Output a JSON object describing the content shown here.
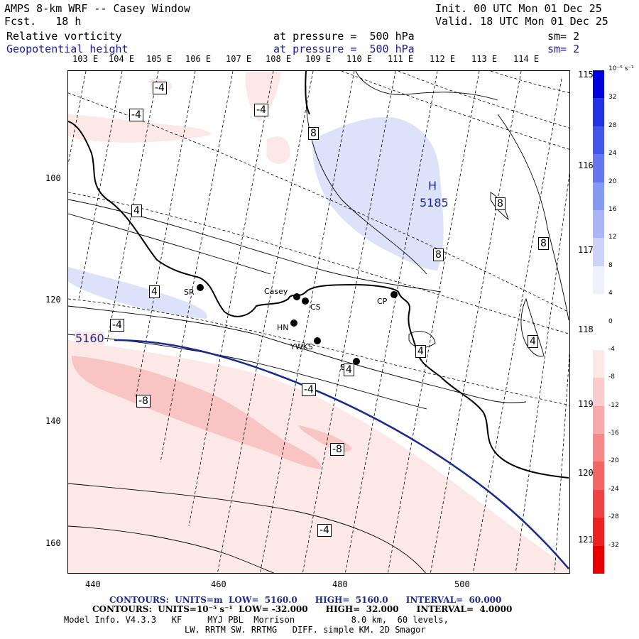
{
  "header": {
    "title": "AMPS 8-km WRF -- Casey Window",
    "fcst": "Fcst.   18 h",
    "init": "Init. 00 UTC Mon 01 Dec 25",
    "valid": "Valid. 18 UTC Mon 01 Dec 25",
    "field1_name": "Relative vorticity",
    "field1_level": "at pressure =  500 hPa",
    "field1_sm": "sm= 2",
    "field2_name": "Geopotential height",
    "field2_level": "at pressure =  500 hPa",
    "field2_sm": "sm= 2"
  },
  "top_longitudes": [
    "103 E",
    "104 E",
    "105 E",
    "106 E",
    "107 E",
    "108 E",
    "109 E",
    "110 E",
    "111 E",
    "112 E",
    "113 E",
    "114 E"
  ],
  "right_latitudes": [
    "115 E",
    "116 E",
    "117 E",
    "118 E",
    "119 E",
    "120 E",
    "121 E"
  ],
  "y_axis": [
    "100",
    "120",
    "140",
    "160"
  ],
  "x_axis": [
    "440",
    "460",
    "480",
    "500"
  ],
  "stations": [
    {
      "label": "SR"
    },
    {
      "label": "Casey"
    },
    {
      "label": "CS"
    },
    {
      "label": "CP"
    },
    {
      "label": "HN"
    },
    {
      "label": "YWKS"
    },
    {
      "label": "BS"
    }
  ],
  "contour_labels": {
    "vort": [
      "-4",
      "-4",
      "-4",
      "8",
      "8",
      "8",
      "4",
      "4",
      "8",
      "-4",
      "4",
      "4",
      "-4",
      "-8",
      "-8",
      "-4",
      "4"
    ],
    "height_high": "H",
    "height_high_value": "5185",
    "height_line": "5160"
  },
  "colorbar": {
    "unit": "10⁻⁵ s⁻¹",
    "ticks": [
      "32",
      "28",
      "24",
      "20",
      "16",
      "12",
      "8",
      "4",
      "0",
      "-4",
      "-8",
      "-12",
      "-16",
      "-20",
      "-24",
      "-28",
      "-32"
    ],
    "colors": [
      "#0000dd",
      "#2233e6",
      "#4455ea",
      "#6677ee",
      "#8899f2",
      "#aab5f5",
      "#ccd2f8",
      "#eef0fc",
      "#ffffff",
      "#ffffff",
      "#fde8e8",
      "#fbcccc",
      "#f8aaaa",
      "#f58888",
      "#f26666",
      "#ef4444",
      "#ec2222",
      "#e80000"
    ]
  },
  "footer": {
    "line1": "CONTOURS:  UNITS=m  LOW=  5160.0      HIGH=  5160.0      INTERVAL=  60.000",
    "line2": "CONTOURS:  UNITS=10⁻⁵ s⁻¹  LOW= -32.000      HIGH=  32.000      INTERVAL=  4.0000",
    "line3": "Model Info. V4.3.3   KF     MYJ PBL  Morrison           8.0 km,  60 levels,",
    "line4": "LW. RRTM SW. RRTMG   DIFF. simple KM. 2D Smagor"
  }
}
